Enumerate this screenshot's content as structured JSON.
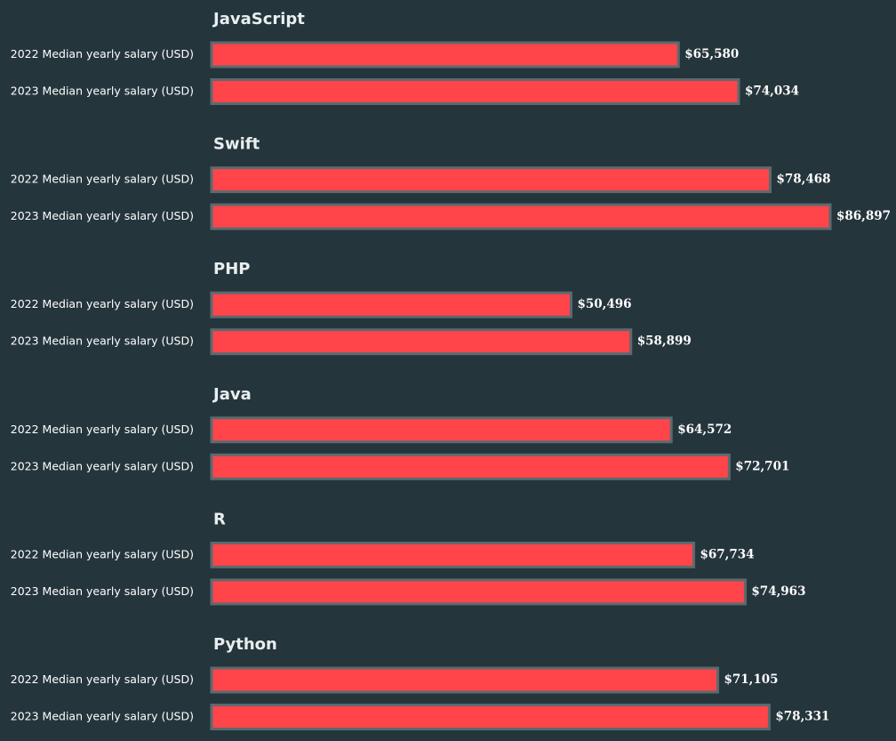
{
  "chart_data": {
    "type": "bar",
    "orientation": "horizontal",
    "colors": {
      "background": "#25353c",
      "bar_fill": "#ff4549",
      "bar_stroke": "#5b6a70",
      "text": "#ffffff"
    },
    "series_labels": [
      "2022 Median yearly salary (USD)",
      "2023 Median yearly salary (USD)"
    ],
    "value_prefix": "$",
    "groups": [
      {
        "title": "JavaScript",
        "values": [
          65580,
          74034
        ],
        "value_labels": [
          "$65,580",
          "$74,034"
        ]
      },
      {
        "title": "Swift",
        "values": [
          78468,
          86897
        ],
        "value_labels": [
          "$78,468",
          "$86,897"
        ]
      },
      {
        "title": "PHP",
        "values": [
          50496,
          58899
        ],
        "value_labels": [
          "$50,496",
          "$58,899"
        ]
      },
      {
        "title": "Java",
        "values": [
          64572,
          72701
        ],
        "value_labels": [
          "$64,572",
          "$72,701"
        ]
      },
      {
        "title": "R",
        "values": [
          67734,
          74963
        ],
        "value_labels": [
          "$67,734",
          "$74,963"
        ]
      },
      {
        "title": "Python",
        "values": [
          71105,
          78331
        ],
        "value_labels": [
          "$71,105",
          "$78,331"
        ]
      }
    ],
    "xlim": [
      0,
      86897
    ],
    "grid": false,
    "legend": "none"
  }
}
